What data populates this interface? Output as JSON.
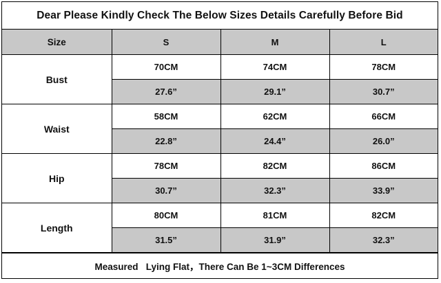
{
  "title": "Dear Please Kindly Check The Below Sizes Details Carefully Before Bid",
  "table": {
    "header": {
      "size_label": "Size",
      "sizes": [
        "S",
        "M",
        "L"
      ]
    },
    "rows": [
      {
        "label": "Bust",
        "cm": [
          "70CM",
          "74CM",
          "78CM"
        ],
        "inch": [
          "27.6”",
          "29.1”",
          "30.7”"
        ]
      },
      {
        "label": "Waist",
        "cm": [
          "58CM",
          "62CM",
          "66CM"
        ],
        "inch": [
          "22.8”",
          "24.4”",
          "26.0”"
        ]
      },
      {
        "label": "Hip",
        "cm": [
          "78CM",
          "82CM",
          "86CM"
        ],
        "inch": [
          "30.7”",
          "32.3”",
          "33.9”"
        ]
      },
      {
        "label": "Length",
        "cm": [
          "80CM",
          "81CM",
          "82CM"
        ],
        "inch": [
          "31.5”",
          "31.9”",
          "32.3”"
        ]
      }
    ]
  },
  "footer": "Measured   Lying Flat，There Can Be 1~3CM Differences",
  "colors": {
    "shade": "#c8c8c8",
    "border": "#000000"
  }
}
